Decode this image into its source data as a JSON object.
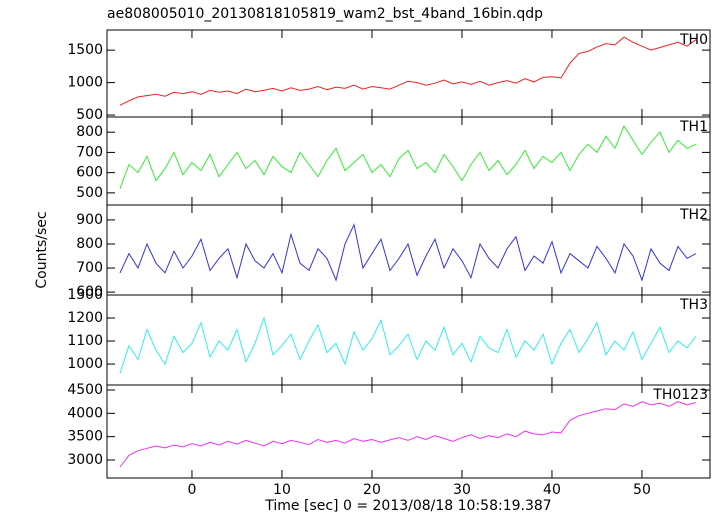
{
  "chart_data": [
    {
      "type": "line",
      "title": "ae808005010_20130818105819_wam2_bst_4band_16bin.qdp",
      "panel_label": "TH0",
      "color": "#ee2222",
      "x": [
        -8,
        -7,
        -6,
        -5,
        -4,
        -3,
        -2,
        -1,
        0,
        1,
        2,
        3,
        4,
        5,
        6,
        7,
        8,
        9,
        10,
        11,
        12,
        13,
        14,
        15,
        16,
        17,
        18,
        19,
        20,
        21,
        22,
        23,
        24,
        25,
        26,
        27,
        28,
        29,
        30,
        31,
        32,
        33,
        34,
        35,
        36,
        37,
        38,
        39,
        40,
        41,
        42,
        43,
        44,
        45,
        46,
        47,
        48,
        49,
        50,
        51,
        52,
        53,
        54,
        55,
        56
      ],
      "values": [
        650,
        720,
        780,
        800,
        820,
        790,
        850,
        830,
        860,
        820,
        880,
        850,
        870,
        830,
        900,
        860,
        880,
        910,
        870,
        920,
        880,
        900,
        940,
        890,
        930,
        910,
        960,
        900,
        940,
        920,
        900,
        960,
        1020,
        1000,
        960,
        990,
        1040,
        980,
        1010,
        970,
        1020,
        960,
        1000,
        1030,
        990,
        1060,
        1010,
        1080,
        1090,
        1070,
        1300,
        1450,
        1480,
        1550,
        1600,
        1580,
        1700,
        1620,
        1560,
        1500,
        1540,
        1580,
        1620,
        1560,
        1660
      ],
      "xlim": [
        -9.44,
        57.56
      ],
      "xticks": [
        0,
        10,
        20,
        30,
        40,
        50
      ],
      "ylim": [
        470,
        1810
      ],
      "yticks": [
        500,
        1000,
        1500
      ]
    },
    {
      "type": "line",
      "panel_label": "TH1",
      "color": "#33ee33",
      "x": [
        -8,
        -7,
        -6,
        -5,
        -4,
        -3,
        -2,
        -1,
        0,
        1,
        2,
        3,
        4,
        5,
        6,
        7,
        8,
        9,
        10,
        11,
        12,
        13,
        14,
        15,
        16,
        17,
        18,
        19,
        20,
        21,
        22,
        23,
        24,
        25,
        26,
        27,
        28,
        29,
        30,
        31,
        32,
        33,
        34,
        35,
        36,
        37,
        38,
        39,
        40,
        41,
        42,
        43,
        44,
        45,
        46,
        47,
        48,
        49,
        50,
        51,
        52,
        53,
        54,
        55,
        56
      ],
      "values": [
        520,
        640,
        600,
        680,
        560,
        620,
        700,
        590,
        650,
        610,
        690,
        580,
        640,
        700,
        620,
        660,
        590,
        680,
        630,
        600,
        700,
        640,
        580,
        660,
        720,
        610,
        650,
        690,
        600,
        640,
        580,
        670,
        710,
        620,
        650,
        600,
        690,
        630,
        560,
        640,
        700,
        610,
        660,
        590,
        640,
        710,
        620,
        680,
        650,
        700,
        610,
        690,
        740,
        700,
        780,
        720,
        830,
        760,
        690,
        750,
        800,
        700,
        760,
        720,
        740
      ],
      "xlim": [
        -9.44,
        57.56
      ],
      "xticks": [
        0,
        10,
        20,
        30,
        40,
        50
      ],
      "ylim": [
        440,
        875
      ],
      "yticks": [
        500,
        600,
        700,
        800
      ]
    },
    {
      "type": "line",
      "panel_label": "TH2",
      "color": "#3333dd",
      "ylabel": "Counts/sec",
      "x": [
        -8,
        -7,
        -6,
        -5,
        -4,
        -3,
        -2,
        -1,
        0,
        1,
        2,
        3,
        4,
        5,
        6,
        7,
        8,
        9,
        10,
        11,
        12,
        13,
        14,
        15,
        16,
        17,
        18,
        19,
        20,
        21,
        22,
        23,
        24,
        25,
        26,
        27,
        28,
        29,
        30,
        31,
        32,
        33,
        34,
        35,
        36,
        37,
        38,
        39,
        40,
        41,
        42,
        43,
        44,
        45,
        46,
        47,
        48,
        49,
        50,
        51,
        52,
        53,
        54,
        55,
        56
      ],
      "values": [
        680,
        760,
        700,
        800,
        720,
        680,
        770,
        700,
        750,
        820,
        690,
        740,
        780,
        660,
        800,
        730,
        700,
        760,
        680,
        840,
        720,
        690,
        780,
        740,
        650,
        800,
        880,
        700,
        760,
        820,
        690,
        740,
        800,
        670,
        750,
        820,
        700,
        780,
        730,
        660,
        800,
        740,
        700,
        780,
        830,
        690,
        750,
        720,
        810,
        680,
        760,
        730,
        700,
        790,
        740,
        680,
        800,
        750,
        650,
        780,
        720,
        690,
        790,
        740,
        760
      ],
      "xlim": [
        -9.44,
        57.56
      ],
      "xticks": [
        0,
        10,
        20,
        30,
        40,
        50
      ],
      "ylim": [
        588,
        962
      ],
      "yticks": [
        600,
        700,
        800,
        900
      ]
    },
    {
      "type": "line",
      "panel_label": "TH3",
      "color": "#33eeee",
      "x": [
        -8,
        -7,
        -6,
        -5,
        -4,
        -3,
        -2,
        -1,
        0,
        1,
        2,
        3,
        4,
        5,
        6,
        7,
        8,
        9,
        10,
        11,
        12,
        13,
        14,
        15,
        16,
        17,
        18,
        19,
        20,
        21,
        22,
        23,
        24,
        25,
        26,
        27,
        28,
        29,
        30,
        31,
        32,
        33,
        34,
        35,
        36,
        37,
        38,
        39,
        40,
        41,
        42,
        43,
        44,
        45,
        46,
        47,
        48,
        49,
        50,
        51,
        52,
        53,
        54,
        55,
        56
      ],
      "values": [
        960,
        1080,
        1020,
        1150,
        1060,
        1000,
        1120,
        1050,
        1090,
        1180,
        1030,
        1100,
        1060,
        1150,
        1010,
        1090,
        1200,
        1040,
        1080,
        1130,
        1020,
        1100,
        1170,
        1050,
        1090,
        1000,
        1140,
        1060,
        1110,
        1190,
        1040,
        1080,
        1130,
        1020,
        1100,
        1060,
        1160,
        1040,
        1090,
        1010,
        1120,
        1070,
        1050,
        1150,
        1030,
        1100,
        1060,
        1130,
        1000,
        1090,
        1150,
        1050,
        1110,
        1180,
        1040,
        1100,
        1060,
        1140,
        1020,
        1090,
        1160,
        1050,
        1100,
        1070,
        1120
      ],
      "xlim": [
        -9.44,
        57.56
      ],
      "xticks": [
        0,
        10,
        20,
        30,
        40,
        50
      ],
      "ylim": [
        909,
        1300
      ],
      "yticks": [
        1000,
        1100,
        1200,
        1300
      ]
    },
    {
      "type": "line",
      "panel_label": "TH0123",
      "color": "#ee33ee",
      "xlabel": "Time [sec] 0 = 2013/08/18 10:58:19.387",
      "x": [
        -8,
        -7,
        -6,
        -5,
        -4,
        -3,
        -2,
        -1,
        0,
        1,
        2,
        3,
        4,
        5,
        6,
        7,
        8,
        9,
        10,
        11,
        12,
        13,
        14,
        15,
        16,
        17,
        18,
        19,
        20,
        21,
        22,
        23,
        24,
        25,
        26,
        27,
        28,
        29,
        30,
        31,
        32,
        33,
        34,
        35,
        36,
        37,
        38,
        39,
        40,
        41,
        42,
        43,
        44,
        45,
        46,
        47,
        48,
        49,
        50,
        51,
        52,
        53,
        54,
        55,
        56
      ],
      "values": [
        2850,
        3100,
        3200,
        3250,
        3300,
        3260,
        3320,
        3280,
        3350,
        3300,
        3380,
        3320,
        3400,
        3340,
        3420,
        3360,
        3300,
        3400,
        3350,
        3420,
        3380,
        3330,
        3440,
        3380,
        3420,
        3360,
        3460,
        3400,
        3440,
        3380,
        3430,
        3480,
        3420,
        3500,
        3440,
        3520,
        3460,
        3400,
        3480,
        3540,
        3460,
        3520,
        3480,
        3560,
        3500,
        3620,
        3560,
        3540,
        3600,
        3580,
        3850,
        3950,
        4000,
        4050,
        4100,
        4080,
        4200,
        4150,
        4250,
        4180,
        4220,
        4150,
        4250,
        4180,
        4230
      ],
      "xlim": [
        -9.44,
        57.56
      ],
      "xticks": [
        0,
        10,
        20,
        30,
        40,
        50
      ],
      "ylim": [
        2614,
        4607
      ],
      "yticks": [
        3000,
        3500,
        4000,
        4500
      ]
    }
  ]
}
